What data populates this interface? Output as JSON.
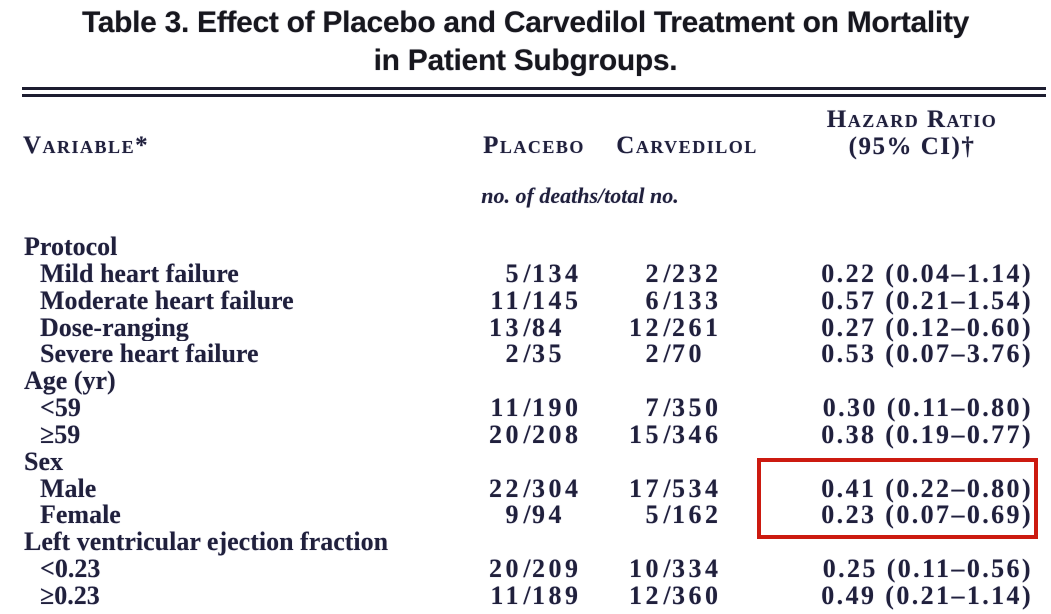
{
  "title": {
    "line1": "Table 3. Effect of Placebo and Carvedilol Treatment on Mortality",
    "line2": "in Patient Subgroups."
  },
  "header": {
    "variable": "Variable*",
    "placebo": "Placebo",
    "carvedilol": "Carvedilol",
    "hazard_line1": "Hazard Ratio",
    "hazard_line2": "(95% CI)†",
    "units_note": "no. of deaths/total no."
  },
  "sep": {
    "fraction": "/"
  },
  "rows": [
    {
      "label": "Protocol",
      "group": true
    },
    {
      "label": "Mild heart failure",
      "placebo_deaths": "5",
      "placebo_total": "134",
      "carvedilol_deaths": "2",
      "carvedilol_total": "232",
      "hazard": "0.22 (0.04–1.14)"
    },
    {
      "label": "Moderate heart failure",
      "placebo_deaths": "11",
      "placebo_total": "145",
      "carvedilol_deaths": "6",
      "carvedilol_total": "133",
      "hazard": "0.57 (0.21–1.54)"
    },
    {
      "label": "Dose-ranging",
      "placebo_deaths": "13",
      "placebo_total": "84",
      "carvedilol_deaths": "12",
      "carvedilol_total": "261",
      "hazard": "0.27 (0.12–0.60)"
    },
    {
      "label": "Severe heart failure",
      "placebo_deaths": "2",
      "placebo_total": "35",
      "carvedilol_deaths": "2",
      "carvedilol_total": "70",
      "hazard": "0.53 (0.07–3.76)"
    },
    {
      "label": "Age (yr)",
      "group": true
    },
    {
      "label": "<59",
      "placebo_deaths": "11",
      "placebo_total": "190",
      "carvedilol_deaths": "7",
      "carvedilol_total": "350",
      "hazard": "0.30 (0.11–0.80)"
    },
    {
      "label": "≥59",
      "placebo_deaths": "20",
      "placebo_total": "208",
      "carvedilol_deaths": "15",
      "carvedilol_total": "346",
      "hazard": "0.38 (0.19–0.77)"
    },
    {
      "label": "Sex",
      "group": true
    },
    {
      "label": "Male",
      "placebo_deaths": "22",
      "placebo_total": "304",
      "carvedilol_deaths": "17",
      "carvedilol_total": "534",
      "hazard": "0.41 (0.22–0.80)"
    },
    {
      "label": "Female",
      "placebo_deaths": "9",
      "placebo_total": "94",
      "carvedilol_deaths": "5",
      "carvedilol_total": "162",
      "hazard": "0.23 (0.07–0.69)"
    },
    {
      "label": "Left ventricular ejection fraction",
      "group": true
    },
    {
      "label": "<0.23",
      "placebo_deaths": "20",
      "placebo_total": "209",
      "carvedilol_deaths": "10",
      "carvedilol_total": "334",
      "hazard": "0.25 (0.11–0.56)"
    },
    {
      "label": "≥0.23",
      "placebo_deaths": "11",
      "placebo_total": "189",
      "carvedilol_deaths": "12",
      "carvedilol_total": "360",
      "hazard": "0.49 (0.21–1.14)"
    }
  ],
  "annotation": {
    "type": "red-highlight-box",
    "encloses": "Hazard ratio values for Male and Female rows",
    "values_enclosed": [
      "0.41 (0.22–0.80)",
      "0.23 (0.07–0.69)"
    ],
    "color": "#cc1a10"
  },
  "colors": {
    "body_text": "#20203c",
    "title_text": "#17171e",
    "rule": "#1d1d30",
    "highlight_box": "#cc1a10",
    "background": "#ffffff"
  }
}
